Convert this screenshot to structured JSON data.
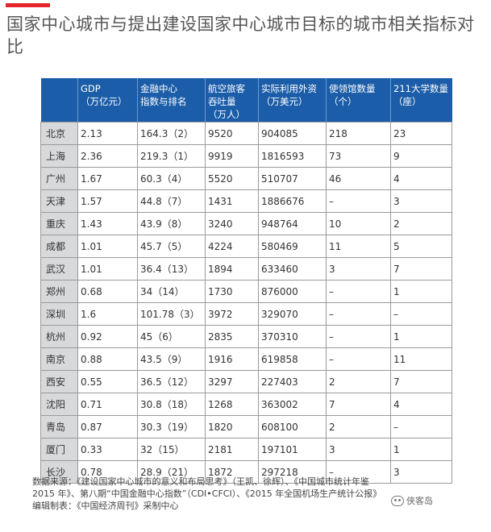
{
  "title": "国家中心城市与提出建设国家中心城市目标的城市相关指标对比",
  "table": {
    "headers": [
      "",
      "GDP\n（万亿元）",
      "金融中心\n指数与排名",
      "航空旅客\n吞吐量\n（万人）",
      "实际利用外资\n（万美元）",
      "使领馆数量\n（个）",
      "211大学数量\n（座）"
    ],
    "rows": [
      [
        "北京",
        "2.13",
        "164.3（2）",
        "9520",
        "904085",
        "218",
        "23"
      ],
      [
        "上海",
        "2.36",
        "219.3（1）",
        "9919",
        "1816593",
        "73",
        "9"
      ],
      [
        "广州",
        "1.67",
        "60.3（4）",
        "5520",
        "510707",
        "46",
        "4"
      ],
      [
        "天津",
        "1.57",
        "44.8（7）",
        "1431",
        "1886676",
        "–",
        "3"
      ],
      [
        "重庆",
        "1.43",
        "43.9（8）",
        "3240",
        "948764",
        "10",
        "2"
      ],
      [
        "成都",
        "1.01",
        "45.7（5）",
        "4224",
        "580469",
        "11",
        "5"
      ],
      [
        "武汉",
        "1.01",
        "36.4（13）",
        "1894",
        "633460",
        "3",
        "7"
      ],
      [
        "郑州",
        "0.68",
        "34（14）",
        "1730",
        "876000",
        "–",
        "1"
      ],
      [
        "深圳",
        "1.6",
        "101.78（3）",
        "3972",
        "329070",
        "–",
        "–"
      ],
      [
        "杭州",
        "0.92",
        "45（6）",
        "2835",
        "370310",
        "–",
        "1"
      ],
      [
        "南京",
        "0.88",
        "43.5（9）",
        "1916",
        "619858",
        "–",
        "11"
      ],
      [
        "西安",
        "0.55",
        "36.5（12）",
        "3297",
        "227403",
        "2",
        "7"
      ],
      [
        "沈阳",
        "0.71",
        "30.8（18）",
        "1268",
        "363002",
        "7",
        "4"
      ],
      [
        "青岛",
        "0.87",
        "30.3（19）",
        "1820",
        "608100",
        "2",
        "–"
      ],
      [
        "厦门",
        "0.33",
        "32（15）",
        "2181",
        "197101",
        "3",
        "1"
      ],
      [
        "长沙",
        "0.78",
        "28.9（21）",
        "1872",
        "297218",
        "–",
        "3"
      ]
    ]
  },
  "source_line1": "数据来源：《建设国家中心城市的意义和布局思考》（王凯、徐辉）、《中国城市统计年鉴",
  "source_line2": "2015 年》、第八期“中国金融中心指数”（CDI•CFCI）、《2015 年全国机场生产统计公报》",
  "source_line3": "编辑制表：《中国经济周刊》采制中心",
  "watermark": "侠客岛",
  "colors": {
    "header_bg": "#1b5da8",
    "accent_red": "#e4262a",
    "city_cell_bg": "#d8d9db"
  }
}
